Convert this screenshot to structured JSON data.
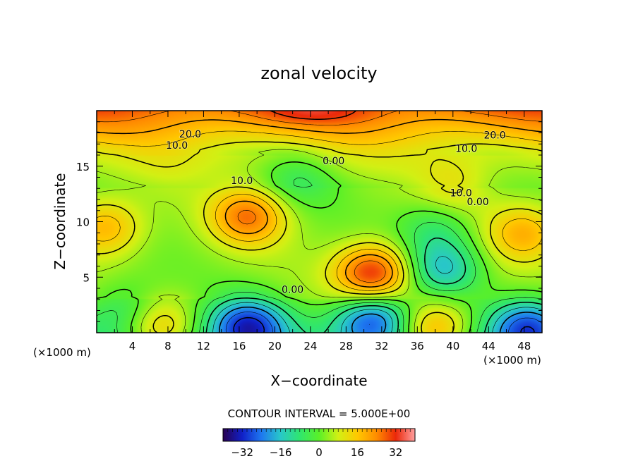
{
  "chart_data": {
    "type": "contour",
    "title": "zonal velocity",
    "xlabel": "X−coordinate",
    "ylabel": "Z−coordinate",
    "x_unit_left": "(×1000 m)",
    "x_unit_right": "(×1000 m)",
    "xlim": [
      0,
      50
    ],
    "ylim": [
      0,
      20
    ],
    "xticks": [
      4,
      8,
      12,
      16,
      20,
      24,
      28,
      32,
      36,
      40,
      44,
      48
    ],
    "yticks": [
      5,
      10,
      15
    ],
    "contour_interval_text": "CONTOUR INTERVAL = 5.000E+00",
    "contour_interval": 5,
    "colorbar": {
      "range": [
        -40,
        40
      ],
      "ticks": [
        -32,
        -16,
        0,
        16,
        32
      ],
      "colors": [
        "#280050",
        "#1020c8",
        "#1e78f0",
        "#28c8c8",
        "#30e66e",
        "#5af028",
        "#d2f014",
        "#ffc800",
        "#ff8c00",
        "#eb280a",
        "#ffa0a0"
      ]
    },
    "contour_labels": [
      {
        "text": "20.0",
        "x": 10.5,
        "z": 17.9
      },
      {
        "text": "10.0",
        "x": 9.0,
        "z": 16.9
      },
      {
        "text": "20.0",
        "x": 44.7,
        "z": 17.8
      },
      {
        "text": "10.0",
        "x": 41.5,
        "z": 16.6
      },
      {
        "text": "0.00",
        "x": 26.6,
        "z": 15.5
      },
      {
        "text": "10.0",
        "x": 16.3,
        "z": 13.7
      },
      {
        "text": "10.0",
        "x": 40.9,
        "z": 12.6
      },
      {
        "text": "0.00",
        "x": 42.8,
        "z": 11.8
      },
      {
        "text": "0.00",
        "x": 22.0,
        "z": 3.9
      }
    ],
    "features": [
      {
        "x": 17.0,
        "z": 10.5,
        "value": 22
      },
      {
        "x": 31.0,
        "z": 5.3,
        "value": 30
      },
      {
        "x": 17.0,
        "z": 0.6,
        "value": -28
      },
      {
        "x": 31.0,
        "z": 1.2,
        "value": -26
      },
      {
        "x": 39.0,
        "z": 5.8,
        "value": -18
      },
      {
        "x": 38.0,
        "z": 9.5,
        "value": -10
      },
      {
        "x": 22.5,
        "z": 14.0,
        "value": -8
      },
      {
        "x": 7.0,
        "z": 0.5,
        "value": 18
      },
      {
        "x": 38.0,
        "z": 0.3,
        "value": 22
      },
      {
        "x": 48.5,
        "z": 0.5,
        "value": -25
      },
      {
        "x": 3.5,
        "z": 2.0,
        "value": -10
      },
      {
        "x": 1.0,
        "z": 9.5,
        "value": 16
      },
      {
        "x": 48.0,
        "z": 9.0,
        "value": 16
      },
      {
        "x": 40.0,
        "z": 13.0,
        "value": 8
      },
      {
        "x": 8.0,
        "z": 14.5,
        "value": 2
      }
    ]
  }
}
